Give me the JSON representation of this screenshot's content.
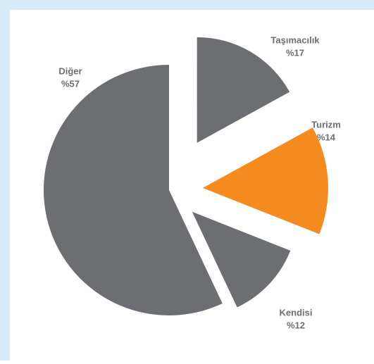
{
  "chart_data": {
    "type": "pie",
    "categories": [
      "Taşımacılık",
      "Turizm",
      "Kendisi",
      "Diğer"
    ],
    "values": [
      17,
      14,
      12,
      57
    ],
    "value_labels": [
      "%17",
      "%14",
      "%12",
      "%57"
    ],
    "colors": [
      "#6d6e71",
      "#f58a1f",
      "#6d6e71",
      "#6d6e71"
    ]
  }
}
